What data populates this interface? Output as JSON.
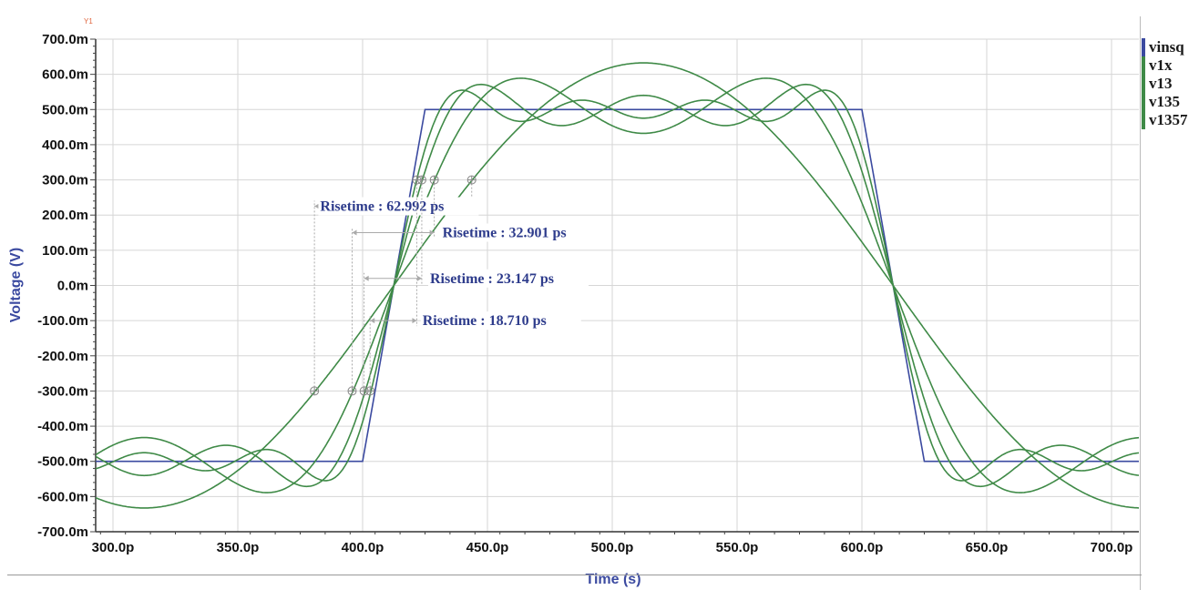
{
  "chart_data": {
    "type": "line",
    "title": "",
    "xlabel": "Time (s)",
    "ylabel": "Voltage (V)",
    "y_axis_tag": "Y1",
    "xlim_ps": [
      293,
      711
    ],
    "ylim_mV": [
      -700,
      700
    ],
    "x_ticks": [
      "300.0p",
      "350.0p",
      "400.0p",
      "450.0p",
      "500.0p",
      "550.0p",
      "600.0p",
      "650.0p",
      "700.0p"
    ],
    "x_tick_values_ps": [
      300,
      350,
      400,
      450,
      500,
      550,
      600,
      650,
      700
    ],
    "y_ticks": [
      "700.0m",
      "600.0m",
      "500.0m",
      "400.0m",
      "300.0m",
      "200.0m",
      "100.0m",
      "0.0m",
      "-100.0m",
      "-200.0m",
      "-300.0m",
      "-400.0m",
      "-500.0m",
      "-600.0m",
      "-700.0m"
    ],
    "y_tick_values_mV": [
      700,
      600,
      500,
      400,
      300,
      200,
      100,
      0,
      -100,
      -200,
      -300,
      -400,
      -500,
      -600,
      -700
    ],
    "grid": true,
    "legend_position": "right",
    "series": [
      {
        "name": "vinsq",
        "color": "#3b4aa0",
        "kind": "trapezoid",
        "x_ps": [
          293,
          400,
          425,
          600,
          625,
          711
        ],
        "y_mV": [
          -500,
          -500,
          500,
          500,
          -500,
          -500
        ]
      },
      {
        "name": "v1x",
        "color": "#3f8a47",
        "kind": "fourier",
        "harmonics": [
          1
        ]
      },
      {
        "name": "v13",
        "color": "#3f8a47",
        "kind": "fourier",
        "harmonics": [
          1,
          3
        ]
      },
      {
        "name": "v135",
        "color": "#3f8a47",
        "kind": "fourier",
        "harmonics": [
          1,
          3,
          5
        ]
      },
      {
        "name": "v1357",
        "color": "#3f8a47",
        "kind": "fourier",
        "harmonics": [
          1,
          3,
          5,
          7
        ]
      }
    ],
    "fourier_params": {
      "period_ps": 400,
      "amplitude_mV": 500,
      "rise_ps": 25,
      "rise_mid_ps": 412.5
    },
    "annotations": [
      {
        "label": "Risetime : 62.992 ps",
        "x_ps": 380.7,
        "x_end_ps": 443.7,
        "y_mV": 225,
        "text_x_ps": 383,
        "text_align": "left"
      },
      {
        "label": "Risetime : 32.901 ps",
        "x_ps": 395.8,
        "x_end_ps": 428.7,
        "y_mV": 150,
        "text_x_ps": 432,
        "text_align": "left"
      },
      {
        "label": "Risetime : 23.147 ps",
        "x_ps": 400.6,
        "x_end_ps": 423.7,
        "y_mV": 20,
        "text_x_ps": 427,
        "text_align": "left"
      },
      {
        "label": "Risetime : 18.710 ps",
        "x_ps": 403.0,
        "x_end_ps": 421.7,
        "y_mV": -100,
        "text_x_ps": 424,
        "text_align": "left"
      }
    ],
    "markers": [
      {
        "x_ps": 380.7,
        "y_mV": -300
      },
      {
        "x_ps": 395.8,
        "y_mV": -300
      },
      {
        "x_ps": 400.6,
        "y_mV": -300
      },
      {
        "x_ps": 403.0,
        "y_mV": -300
      },
      {
        "x_ps": 443.7,
        "y_mV": 300
      },
      {
        "x_ps": 428.7,
        "y_mV": 300
      },
      {
        "x_ps": 423.7,
        "y_mV": 300
      },
      {
        "x_ps": 421.7,
        "y_mV": 300
      }
    ]
  },
  "legend": {
    "items": [
      {
        "label": "vinsq",
        "color": "#3b4aa0"
      },
      {
        "label": "v1x",
        "color": "#3f8a47"
      },
      {
        "label": "v13",
        "color": "#3f8a47"
      },
      {
        "label": "v135",
        "color": "#3f8a47"
      },
      {
        "label": "v1357",
        "color": "#3f8a47"
      }
    ]
  }
}
